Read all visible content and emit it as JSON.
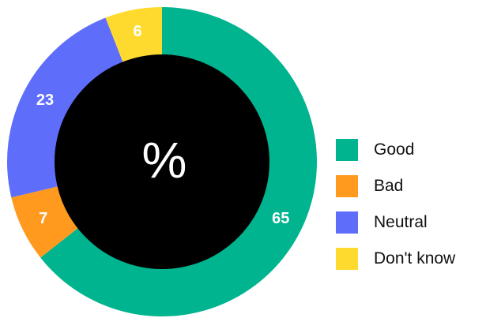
{
  "chart_data": {
    "type": "pie",
    "center_label": "%",
    "categories": [
      "Good",
      "Bad",
      "Neutral",
      "Don't know"
    ],
    "values": [
      65,
      7,
      23,
      6
    ],
    "colors": [
      "#00B48F",
      "#FF9A1E",
      "#5F6EFA",
      "#FFDA2E"
    ],
    "legend_position": "right",
    "center_color": "#000000"
  }
}
